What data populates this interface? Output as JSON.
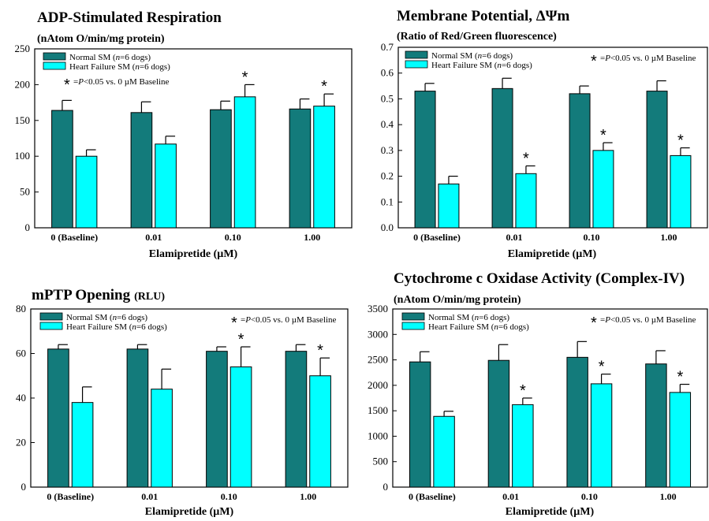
{
  "colors": {
    "normal": "#137b7b",
    "hf": "#00ffff"
  },
  "chart_data": [
    {
      "type": "bar",
      "title": "ADP-Stimulated Respiration",
      "title_small": "",
      "subtitle": "(nAtom O/min/mg protein)",
      "xlabel": "Elamipretide (µM)",
      "categories": [
        "0 (Baseline)",
        "0.01",
        "0.10",
        "1.00"
      ],
      "ylim": [
        0,
        250
      ],
      "yticks": [
        0,
        50,
        100,
        150,
        200,
        250
      ],
      "series": [
        {
          "name": "Normal SM (n=6 dogs)",
          "values": [
            164,
            161,
            165,
            166
          ],
          "errors": [
            14,
            15,
            12,
            14
          ]
        },
        {
          "name": "Heart Failure SM (n=6 dogs)",
          "values": [
            100,
            117,
            183,
            170
          ],
          "errors": [
            9,
            11,
            17,
            17
          ]
        }
      ],
      "significant": [
        false,
        false,
        true,
        true
      ],
      "note": "=P<0.05 vs. 0 µM Baseline",
      "note_position": "legend-bottom",
      "grid": false
    },
    {
      "type": "bar",
      "title": "Membrane Potential, ΔΨm",
      "title_small": "",
      "subtitle": "(Ratio of Red/Green fluorescence)",
      "xlabel": "Elamipretide (µM)",
      "categories": [
        "0 (Baseline)",
        "0.01",
        "0.10",
        "1.00"
      ],
      "ylim": [
        0,
        0.7
      ],
      "yticks": [
        0.0,
        0.1,
        0.2,
        0.3,
        0.4,
        0.5,
        0.6,
        0.7
      ],
      "series": [
        {
          "name": "Normal SM (n=6 dogs)",
          "values": [
            0.53,
            0.54,
            0.52,
            0.53
          ],
          "errors": [
            0.03,
            0.04,
            0.03,
            0.04
          ]
        },
        {
          "name": "Heart Failure SM (n=6 dogs)",
          "values": [
            0.17,
            0.21,
            0.3,
            0.28
          ],
          "errors": [
            0.03,
            0.03,
            0.03,
            0.03
          ]
        }
      ],
      "significant": [
        false,
        true,
        true,
        true
      ],
      "note": "=P<0.05 vs. 0 µM Baseline",
      "note_position": "top-right",
      "grid": false
    },
    {
      "type": "bar",
      "title": "mPTP Opening",
      "title_small": "(RLU)",
      "subtitle": "",
      "xlabel": "Elamipretide (µM)",
      "categories": [
        "0 (Baseline)",
        "0.01",
        "0.10",
        "1.00"
      ],
      "ylim": [
        0,
        80
      ],
      "yticks": [
        0,
        20,
        40,
        60,
        80
      ],
      "series": [
        {
          "name": "Normal SM (n=6 dogs)",
          "values": [
            62,
            62,
            61,
            61
          ],
          "errors": [
            2,
            2,
            2,
            3
          ]
        },
        {
          "name": "Heart Failure SM (n=6 dogs)",
          "values": [
            38,
            44,
            54,
            50
          ],
          "errors": [
            7,
            9,
            9,
            8
          ]
        }
      ],
      "significant": [
        false,
        false,
        true,
        true
      ],
      "note": "=P<0.05 vs. 0 µM Baseline",
      "note_position": "top-right",
      "grid": false
    },
    {
      "type": "bar",
      "title": "Cytochrome c Oxidase Activity (Complex-IV)",
      "title_small": "",
      "subtitle": "(nAtom O/min/mg protein)",
      "xlabel": "Elamipretide (µM)",
      "categories": [
        "0 (Baseline)",
        "0.01",
        "0.10",
        "1.00"
      ],
      "ylim": [
        0,
        3500
      ],
      "yticks": [
        0,
        500,
        1000,
        1500,
        2000,
        2500,
        3000,
        3500
      ],
      "series": [
        {
          "name": "Normal SM (n=6 dogs)",
          "values": [
            2460,
            2490,
            2550,
            2420
          ],
          "errors": [
            200,
            310,
            310,
            260
          ]
        },
        {
          "name": "Heart Failure SM (n=6 dogs)",
          "values": [
            1390,
            1620,
            2030,
            1860
          ],
          "errors": [
            100,
            130,
            190,
            160
          ]
        }
      ],
      "significant": [
        false,
        true,
        true,
        true
      ],
      "note": "=P<0.05 vs. 0 µM Baseline",
      "note_position": "top-right",
      "grid": false
    }
  ]
}
